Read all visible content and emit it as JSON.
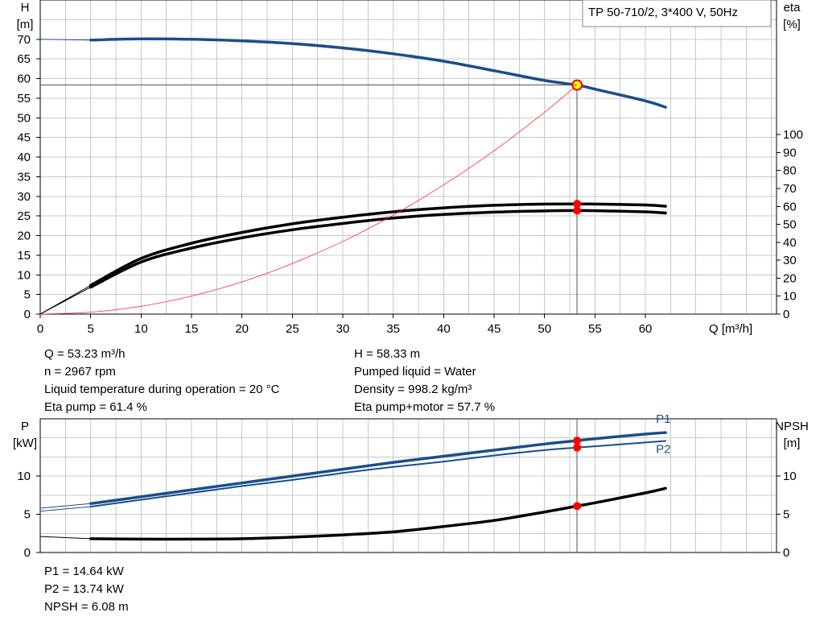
{
  "chart_data": [
    {
      "type": "line",
      "title": "TP 50-710/2, 3*400 V, 50Hz",
      "xlabel": "Q [m³/h]",
      "ylabel_left": [
        "H",
        "[m]"
      ],
      "ylabel_right": [
        "eta",
        "[%]"
      ],
      "xlim": [
        0,
        73
      ],
      "xticks": [
        0,
        5,
        10,
        15,
        20,
        25,
        30,
        35,
        40,
        45,
        50,
        55,
        60
      ],
      "ylim_left": [
        0,
        80
      ],
      "yticks_left": [
        0,
        5,
        10,
        15,
        20,
        25,
        30,
        35,
        40,
        45,
        50,
        55,
        60,
        65,
        70
      ],
      "ylim_right": [
        0,
        175
      ],
      "yticks_right": [
        0,
        10,
        20,
        30,
        40,
        50,
        60,
        70,
        80,
        90,
        100
      ],
      "grid": true,
      "series": [
        {
          "role": "head",
          "axis": "left",
          "color": "#1a4e8a",
          "x": [
            0,
            5,
            10,
            15,
            20,
            25,
            30,
            35,
            40,
            45,
            50,
            53.23,
            55,
            60,
            62
          ],
          "y": [
            70,
            69.8,
            70.1,
            70.0,
            69.6,
            68.9,
            67.8,
            66.3,
            64.4,
            62.0,
            59.5,
            58.33,
            57.3,
            54.3,
            52.7
          ]
        },
        {
          "role": "eta-pump",
          "axis": "right",
          "color": "#000000",
          "x": [
            0,
            5,
            10,
            15,
            20,
            25,
            30,
            35,
            40,
            45,
            50,
            53.23,
            55,
            60,
            62
          ],
          "y": [
            0,
            16,
            31,
            39.5,
            45.5,
            50.3,
            54,
            57,
            59.2,
            60.6,
            61.3,
            61.4,
            61.3,
            60.8,
            60.1
          ]
        },
        {
          "role": "eta-pump-motor",
          "axis": "right",
          "color": "#000000",
          "x": [
            0,
            5,
            10,
            15,
            20,
            25,
            30,
            35,
            40,
            45,
            50,
            53.23,
            55,
            60,
            62
          ],
          "y": [
            0,
            15,
            29,
            36.8,
            42.5,
            47,
            50.5,
            53.5,
            55.5,
            56.8,
            57.5,
            57.7,
            57.6,
            57.0,
            56.3
          ]
        },
        {
          "role": "system-curve",
          "axis": "left",
          "color": "#ff2a2a",
          "x": [
            0,
            5,
            10,
            15,
            20,
            25,
            30,
            35,
            40,
            45,
            50,
            53.23
          ],
          "y": [
            0,
            0.5,
            2.0,
            4.6,
            8.2,
            12.9,
            18.5,
            25.2,
            32.9,
            41.6,
            51.4,
            58.33
          ]
        }
      ],
      "operating_point": {
        "x": 53.23,
        "h": 58.33,
        "eta_pump": 61.4,
        "eta_pump_motor": 57.7
      }
    },
    {
      "type": "line",
      "ylabel_left": [
        "P",
        "[kW]"
      ],
      "ylabel_right": [
        "NPSH",
        "[m]"
      ],
      "xlim": [
        0,
        73
      ],
      "ylim_left": [
        0,
        17.5
      ],
      "yticks_left": [
        0,
        5,
        10
      ],
      "ylim_right": [
        0,
        17.5
      ],
      "yticks_right": [
        0,
        5,
        10
      ],
      "grid": true,
      "series": [
        {
          "name": "P1",
          "axis": "left",
          "color": "#1a4e8a",
          "x": [
            0,
            5,
            10,
            15,
            20,
            25,
            30,
            35,
            40,
            45,
            50,
            53.23,
            55,
            60,
            62
          ],
          "y": [
            5.8,
            6.4,
            7.3,
            8.2,
            9.1,
            10.0,
            10.9,
            11.8,
            12.6,
            13.4,
            14.2,
            14.64,
            14.9,
            15.5,
            15.7
          ]
        },
        {
          "name": "P2",
          "axis": "left",
          "color": "#1a4e8a",
          "x": [
            0,
            5,
            10,
            15,
            20,
            25,
            30,
            35,
            40,
            45,
            50,
            53.23,
            55,
            60,
            62
          ],
          "y": [
            5.4,
            6.0,
            6.9,
            7.8,
            8.7,
            9.5,
            10.4,
            11.2,
            11.9,
            12.7,
            13.4,
            13.74,
            13.9,
            14.4,
            14.6
          ]
        },
        {
          "role": "NPSH",
          "axis": "right",
          "color": "#000000",
          "x": [
            0,
            5,
            10,
            15,
            20,
            25,
            30,
            35,
            40,
            45,
            50,
            53.23,
            55,
            60,
            62
          ],
          "y": [
            2.1,
            1.8,
            1.75,
            1.75,
            1.8,
            2.0,
            2.3,
            2.7,
            3.4,
            4.2,
            5.3,
            6.08,
            6.5,
            7.8,
            8.4
          ]
        }
      ],
      "operating_point": {
        "x": 53.23,
        "p1": 14.64,
        "p2": 13.74,
        "npsh": 6.08
      }
    }
  ],
  "info_top_left": [
    "Q = 53.23 m³/h",
    "n = 2967 rpm",
    "Liquid temperature during operation = 20 °C",
    "Eta pump = 61.4 %"
  ],
  "info_top_right": [
    "H = 58.33 m",
    "Pumped liquid = Water",
    "Density = 998.2 kg/m³",
    "Eta pump+motor = 57.7 %"
  ],
  "info_bottom": [
    "P1 = 14.64 kW",
    "P2 = 13.74 kW",
    "NPSH = 6.08 m"
  ],
  "colors": {
    "head": "#1a4e8a",
    "power": "#1a4e8a",
    "efficiency": "#000000",
    "system": "#ff2a2a",
    "marker": "#ff0000",
    "marker_yellow": "#ffff00",
    "grid": "#c8c8c8"
  }
}
